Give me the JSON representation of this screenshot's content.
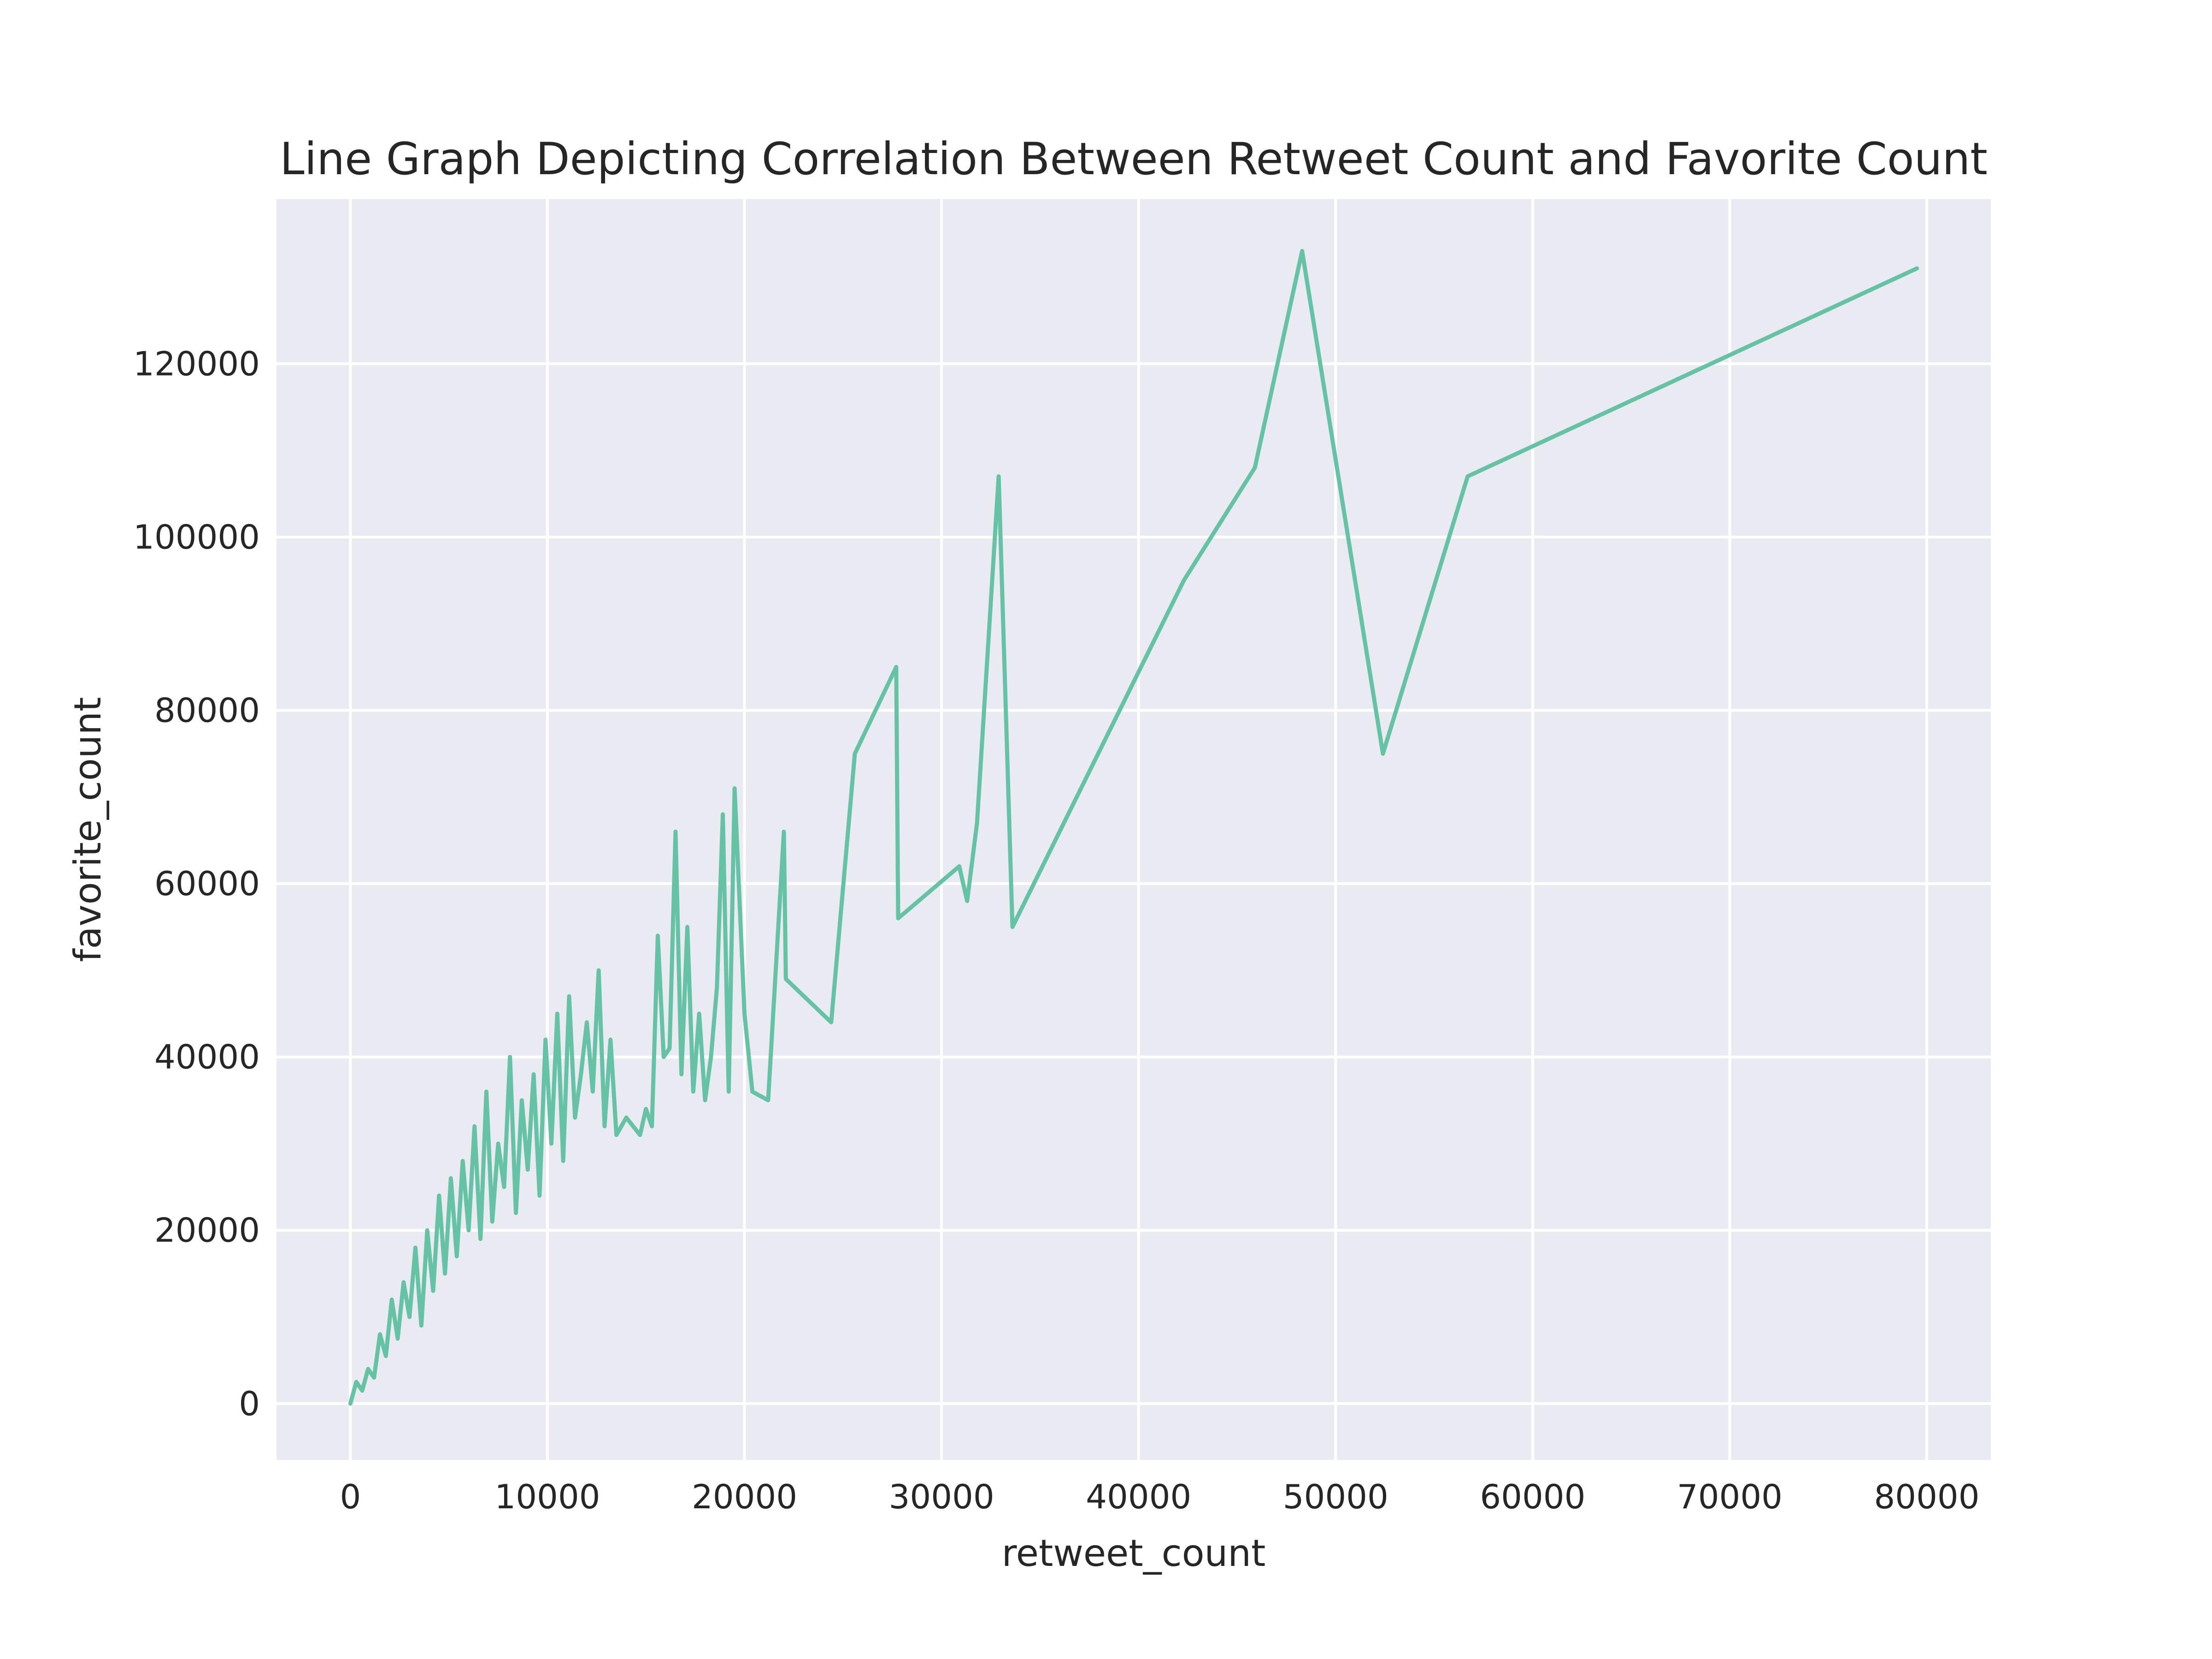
{
  "chart_data": {
    "type": "line",
    "title": "Line Graph Depicting Correlation Between Retweet Count and Favorite Count",
    "xlabel": "retweet_count",
    "ylabel": "favorite_count",
    "xlim": [
      -3750,
      83250
    ],
    "ylim": [
      -6500,
      139000
    ],
    "xticks": [
      0,
      10000,
      20000,
      30000,
      40000,
      50000,
      60000,
      70000,
      80000
    ],
    "xtick_labels": [
      "0",
      "10000",
      "20000",
      "30000",
      "40000",
      "50000",
      "60000",
      "70000",
      "80000"
    ],
    "yticks": [
      0,
      20000,
      40000,
      60000,
      80000,
      100000,
      120000
    ],
    "ytick_labels": [
      "0",
      "20000",
      "40000",
      "60000",
      "80000",
      "100000",
      "120000"
    ],
    "grid": true,
    "legend": "none",
    "background_color": "#eaeaf2",
    "grid_color": "#ffffff",
    "series": [
      {
        "color": "#66c2a5",
        "x": [
          0,
          300,
          600,
          900,
          1200,
          1500,
          1800,
          2100,
          2400,
          2700,
          3000,
          3300,
          3600,
          3900,
          4200,
          4500,
          4800,
          5100,
          5400,
          5700,
          6000,
          6300,
          6600,
          6900,
          7200,
          7500,
          7800,
          8100,
          8400,
          8700,
          9000,
          9300,
          9600,
          9900,
          10200,
          10500,
          10800,
          11100,
          11400,
          11700,
          12000,
          12300,
          12600,
          12900,
          13200,
          13500,
          14000,
          14700,
          15000,
          15300,
          15600,
          15900,
          16200,
          16500,
          16800,
          17100,
          17400,
          17700,
          18000,
          18300,
          18600,
          18900,
          19200,
          19500,
          20000,
          20400,
          21200,
          22000,
          22100,
          24400,
          25600,
          27700,
          27800,
          30900,
          31300,
          31800,
          32900,
          33600,
          42300,
          45900,
          48300,
          52400,
          56700,
          79500
        ],
        "y": [
          0,
          2500,
          1500,
          4000,
          3000,
          8000,
          5500,
          12000,
          7500,
          14000,
          10000,
          18000,
          9000,
          20000,
          13000,
          24000,
          15000,
          26000,
          17000,
          28000,
          20000,
          32000,
          19000,
          36000,
          21000,
          30000,
          25000,
          40000,
          22000,
          35000,
          27000,
          38000,
          24000,
          42000,
          30000,
          45000,
          28000,
          47000,
          33000,
          38000,
          44000,
          36000,
          50000,
          32000,
          42000,
          31000,
          33000,
          31000,
          34000,
          32000,
          54000,
          40000,
          41000,
          66000,
          38000,
          55000,
          36000,
          45000,
          35000,
          40000,
          48000,
          68000,
          36000,
          71000,
          45000,
          36000,
          35000,
          66000,
          49000,
          44000,
          75000,
          85000,
          56000,
          62000,
          58000,
          67000,
          107000,
          55000,
          95000,
          108000,
          133000,
          75000,
          107000,
          131000
        ]
      }
    ]
  }
}
